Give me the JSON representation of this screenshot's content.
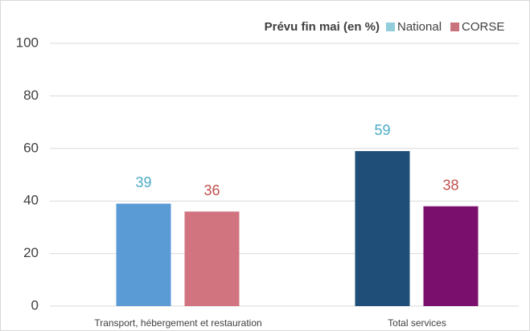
{
  "chart_data": {
    "type": "bar",
    "legend_title": "Prévu fin mai (en %)",
    "categories": [
      "Transport, hébergement et restauration",
      "Total services"
    ],
    "series": [
      {
        "name": "National",
        "color": "#92cddc",
        "colors": [
          "#5b9bd5",
          "#1f4e79"
        ],
        "label_color": "#4bacc6",
        "values": [
          39,
          59
        ]
      },
      {
        "name": "CORSE",
        "color": "#c9727c",
        "colors": [
          "#d27480",
          "#7b0f6e"
        ],
        "label_color": "#c0504d",
        "values": [
          36,
          38
        ]
      }
    ],
    "ylim": [
      0,
      100
    ],
    "yticks": [
      0,
      20,
      40,
      60,
      80,
      100
    ],
    "grid": true,
    "legend": "top-right"
  }
}
